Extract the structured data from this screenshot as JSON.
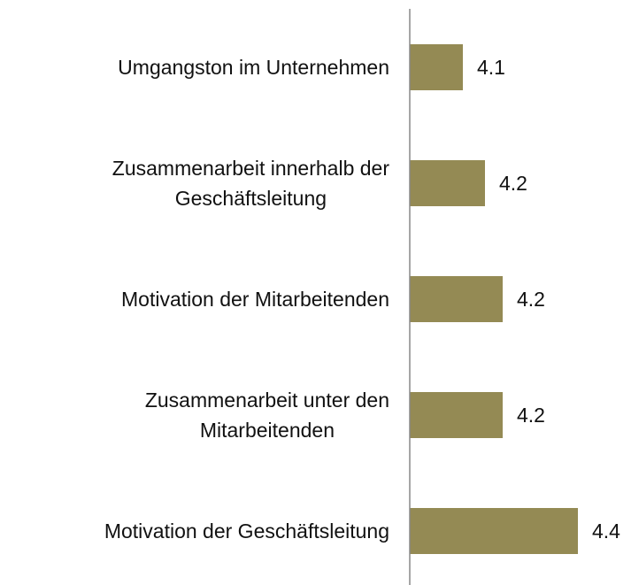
{
  "chart_data": {
    "type": "bar",
    "orientation": "horizontal",
    "categories": [
      "Umgangston im Unternehmen",
      "Zusammenarbeit innerhalb der\nGeschäftsleitung",
      "Motivation der Mitarbeitenden",
      "Zusammenarbeit unter den\nMitarbeitenden",
      "Motivation der Geschäftsleitung"
    ],
    "values": [
      4.12,
      4.17,
      4.21,
      4.21,
      4.38
    ],
    "value_labels": [
      "4.1",
      "4.2",
      "4.2",
      "4.2",
      "4.4"
    ],
    "color": "#948a54",
    "xlim": [
      4.0,
      4.5
    ]
  }
}
